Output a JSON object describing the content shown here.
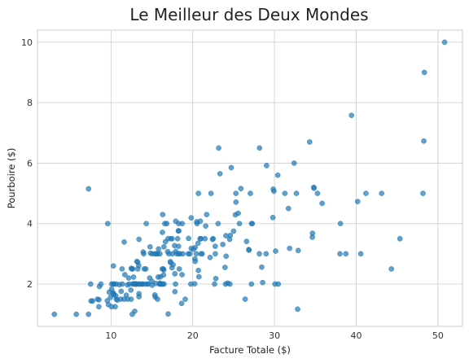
{
  "chart_data": {
    "type": "scatter",
    "title": "Le Meilleur des Deux Mondes",
    "xlabel": "Facture Totale ($)",
    "ylabel": "Pourboire ($)",
    "xlim": [
      1.0,
      53.0
    ],
    "ylim": [
      0.6,
      10.4
    ],
    "xticks": [
      10,
      20,
      30,
      40,
      50
    ],
    "yticks": [
      2,
      4,
      6,
      8,
      10
    ],
    "grid": true,
    "color": "#1f77b4",
    "points": [
      [
        16.99,
        1.01
      ],
      [
        10.34,
        1.66
      ],
      [
        21.01,
        3.5
      ],
      [
        23.68,
        3.31
      ],
      [
        24.59,
        3.61
      ],
      [
        25.29,
        4.71
      ],
      [
        8.77,
        2.0
      ],
      [
        26.88,
        3.12
      ],
      [
        15.04,
        1.96
      ],
      [
        14.78,
        3.23
      ],
      [
        10.27,
        1.71
      ],
      [
        35.26,
        5.0
      ],
      [
        15.42,
        1.57
      ],
      [
        18.43,
        3.0
      ],
      [
        14.83,
        3.02
      ],
      [
        21.58,
        3.92
      ],
      [
        10.33,
        1.67
      ],
      [
        16.29,
        3.71
      ],
      [
        16.97,
        3.5
      ],
      [
        20.65,
        3.35
      ],
      [
        17.92,
        4.08
      ],
      [
        20.29,
        2.75
      ],
      [
        15.77,
        2.23
      ],
      [
        39.42,
        7.58
      ],
      [
        19.82,
        3.18
      ],
      [
        17.81,
        2.34
      ],
      [
        13.37,
        2.0
      ],
      [
        12.69,
        2.0
      ],
      [
        21.7,
        4.3
      ],
      [
        19.65,
        3.0
      ],
      [
        9.55,
        1.45
      ],
      [
        18.35,
        2.5
      ],
      [
        15.06,
        3.0
      ],
      [
        20.69,
        2.45
      ],
      [
        17.78,
        3.27
      ],
      [
        24.06,
        3.6
      ],
      [
        16.31,
        2.0
      ],
      [
        16.93,
        3.07
      ],
      [
        18.69,
        2.31
      ],
      [
        31.27,
        5.0
      ],
      [
        16.04,
        2.24
      ],
      [
        17.46,
        2.54
      ],
      [
        13.94,
        3.06
      ],
      [
        9.68,
        1.32
      ],
      [
        30.4,
        5.6
      ],
      [
        18.29,
        3.0
      ],
      [
        22.23,
        5.0
      ],
      [
        32.4,
        6.0
      ],
      [
        28.55,
        2.05
      ],
      [
        18.04,
        3.0
      ],
      [
        12.54,
        2.5
      ],
      [
        10.29,
        2.6
      ],
      [
        34.81,
        5.2
      ],
      [
        9.94,
        1.56
      ],
      [
        25.56,
        4.34
      ],
      [
        19.49,
        3.51
      ],
      [
        38.01,
        3.0
      ],
      [
        26.41,
        1.5
      ],
      [
        11.24,
        1.76
      ],
      [
        48.27,
        6.73
      ],
      [
        20.29,
        3.21
      ],
      [
        13.81,
        2.0
      ],
      [
        11.02,
        1.98
      ],
      [
        18.29,
        3.76
      ],
      [
        17.59,
        2.64
      ],
      [
        20.08,
        3.15
      ],
      [
        16.45,
        2.47
      ],
      [
        3.07,
        1.0
      ],
      [
        20.23,
        2.01
      ],
      [
        15.01,
        2.09
      ],
      [
        12.02,
        1.97
      ],
      [
        17.07,
        3.0
      ],
      [
        26.86,
        3.14
      ],
      [
        25.28,
        5.0
      ],
      [
        14.73,
        2.2
      ],
      [
        10.51,
        1.25
      ],
      [
        17.92,
        3.08
      ],
      [
        27.2,
        4.0
      ],
      [
        22.76,
        3.0
      ],
      [
        17.29,
        2.71
      ],
      [
        19.44,
        3.0
      ],
      [
        16.66,
        3.4
      ],
      [
        10.07,
        1.83
      ],
      [
        32.68,
        5.0
      ],
      [
        15.98,
        2.03
      ],
      [
        34.83,
        5.17
      ],
      [
        13.03,
        2.0
      ],
      [
        18.28,
        4.0
      ],
      [
        24.71,
        5.85
      ],
      [
        21.16,
        3.0
      ],
      [
        28.97,
        3.0
      ],
      [
        22.49,
        3.5
      ],
      [
        5.75,
        1.0
      ],
      [
        16.32,
        4.3
      ],
      [
        22.75,
        3.25
      ],
      [
        40.17,
        4.73
      ],
      [
        27.28,
        4.0
      ],
      [
        12.03,
        1.5
      ],
      [
        21.01,
        3.0
      ],
      [
        12.46,
        1.5
      ],
      [
        11.35,
        2.5
      ],
      [
        15.38,
        3.0
      ],
      [
        44.3,
        2.5
      ],
      [
        22.42,
        3.48
      ],
      [
        20.92,
        4.08
      ],
      [
        15.36,
        1.64
      ],
      [
        20.49,
        4.06
      ],
      [
        25.21,
        4.29
      ],
      [
        18.24,
        3.76
      ],
      [
        14.31,
        4.0
      ],
      [
        14.0,
        3.0
      ],
      [
        7.25,
        1.0
      ],
      [
        38.07,
        4.0
      ],
      [
        23.95,
        2.55
      ],
      [
        25.71,
        4.0
      ],
      [
        17.31,
        3.5
      ],
      [
        29.93,
        5.07
      ],
      [
        10.65,
        1.5
      ],
      [
        12.43,
        1.8
      ],
      [
        24.08,
        2.92
      ],
      [
        11.69,
        2.31
      ],
      [
        13.42,
        1.68
      ],
      [
        14.26,
        2.5
      ],
      [
        15.95,
        2.0
      ],
      [
        12.48,
        2.52
      ],
      [
        29.8,
        4.2
      ],
      [
        8.52,
        1.48
      ],
      [
        14.52,
        2.0
      ],
      [
        11.38,
        2.0
      ],
      [
        22.82,
        2.18
      ],
      [
        19.08,
        1.5
      ],
      [
        20.27,
        2.83
      ],
      [
        11.17,
        1.5
      ],
      [
        12.26,
        2.0
      ],
      [
        18.26,
        3.25
      ],
      [
        8.51,
        1.25
      ],
      [
        10.33,
        2.0
      ],
      [
        14.15,
        2.0
      ],
      [
        16.0,
        2.0
      ],
      [
        13.16,
        2.75
      ],
      [
        17.47,
        3.5
      ],
      [
        34.3,
        6.7
      ],
      [
        41.19,
        5.0
      ],
      [
        27.05,
        5.0
      ],
      [
        16.43,
        2.3
      ],
      [
        8.35,
        1.5
      ],
      [
        18.64,
        1.36
      ],
      [
        11.87,
        1.63
      ],
      [
        9.78,
        1.73
      ],
      [
        7.51,
        2.0
      ],
      [
        14.07,
        2.5
      ],
      [
        13.13,
        2.0
      ],
      [
        17.26,
        2.74
      ],
      [
        24.55,
        2.0
      ],
      [
        19.77,
        2.0
      ],
      [
        29.85,
        5.14
      ],
      [
        48.17,
        5.0
      ],
      [
        25.0,
        3.75
      ],
      [
        13.39,
        2.61
      ],
      [
        16.49,
        2.0
      ],
      [
        21.5,
        3.5
      ],
      [
        12.66,
        2.5
      ],
      [
        16.21,
        2.0
      ],
      [
        13.81,
        2.0
      ],
      [
        17.51,
        3.0
      ],
      [
        24.52,
        3.48
      ],
      [
        20.76,
        2.24
      ],
      [
        31.71,
        4.5
      ],
      [
        10.59,
        1.61
      ],
      [
        10.63,
        2.0
      ],
      [
        50.81,
        10.0
      ],
      [
        15.81,
        3.16
      ],
      [
        7.25,
        5.15
      ],
      [
        31.85,
        3.18
      ],
      [
        16.82,
        4.0
      ],
      [
        32.9,
        3.11
      ],
      [
        17.89,
        2.0
      ],
      [
        14.48,
        2.0
      ],
      [
        9.6,
        4.0
      ],
      [
        34.63,
        3.55
      ],
      [
        34.65,
        3.68
      ],
      [
        23.33,
        5.65
      ],
      [
        45.35,
        3.5
      ],
      [
        23.17,
        6.5
      ],
      [
        40.55,
        3.0
      ],
      [
        20.69,
        5.0
      ],
      [
        20.9,
        3.5
      ],
      [
        30.46,
        2.0
      ],
      [
        18.15,
        3.5
      ],
      [
        23.1,
        4.0
      ],
      [
        15.69,
        1.5
      ],
      [
        19.81,
        4.19
      ],
      [
        28.44,
        2.56
      ],
      [
        15.48,
        2.02
      ],
      [
        16.58,
        4.0
      ],
      [
        7.56,
        1.44
      ],
      [
        10.34,
        2.0
      ],
      [
        43.11,
        5.0
      ],
      [
        13.0,
        2.0
      ],
      [
        13.51,
        2.0
      ],
      [
        18.71,
        4.0
      ],
      [
        12.74,
        2.01
      ],
      [
        13.0,
        2.0
      ],
      [
        16.4,
        2.5
      ],
      [
        20.53,
        4.0
      ],
      [
        16.47,
        3.23
      ],
      [
        26.59,
        3.41
      ],
      [
        38.73,
        3.0
      ],
      [
        24.27,
        2.03
      ],
      [
        12.76,
        2.23
      ],
      [
        30.06,
        2.0
      ],
      [
        25.89,
        5.16
      ],
      [
        48.33,
        9.0
      ],
      [
        13.27,
        2.5
      ],
      [
        28.17,
        6.5
      ],
      [
        12.9,
        1.1
      ],
      [
        28.15,
        3.0
      ],
      [
        11.59,
        1.5
      ],
      [
        7.74,
        1.44
      ],
      [
        30.14,
        3.09
      ],
      [
        12.16,
        2.2
      ],
      [
        13.42,
        3.48
      ],
      [
        8.58,
        1.92
      ],
      [
        15.98,
        3.0
      ],
      [
        13.42,
        1.58
      ],
      [
        16.27,
        2.5
      ],
      [
        10.09,
        2.0
      ],
      [
        20.45,
        3.0
      ],
      [
        13.28,
        2.72
      ],
      [
        22.12,
        2.88
      ],
      [
        24.01,
        2.0
      ],
      [
        15.69,
        3.0
      ],
      [
        11.61,
        3.39
      ],
      [
        10.77,
        1.47
      ],
      [
        15.53,
        3.0
      ],
      [
        10.07,
        1.25
      ],
      [
        12.6,
        1.0
      ],
      [
        32.83,
        1.17
      ],
      [
        35.83,
        4.67
      ],
      [
        29.03,
        5.92
      ],
      [
        27.18,
        2.0
      ],
      [
        22.67,
        2.0
      ],
      [
        17.82,
        1.75
      ],
      [
        18.78,
        3.0
      ]
    ]
  }
}
